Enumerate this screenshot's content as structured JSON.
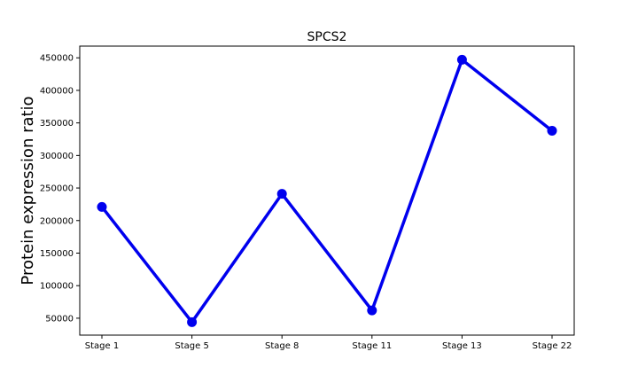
{
  "chart_data": {
    "type": "line",
    "title": "SPCS2",
    "xlabel": "",
    "ylabel": "Protein expression ratio",
    "categories": [
      "Stage 1",
      "Stage 5",
      "Stage 8",
      "Stage 11",
      "Stage 13",
      "Stage 22"
    ],
    "series": [
      {
        "values": [
          221000,
          44000,
          241000,
          62000,
          447000,
          338000
        ],
        "color": "#0000ee",
        "marker": "circle"
      }
    ],
    "yticks": [
      50000,
      100000,
      150000,
      200000,
      250000,
      300000,
      350000,
      400000,
      450000
    ],
    "ylim": [
      24000,
      468000
    ],
    "grid": false,
    "legend": "none"
  }
}
